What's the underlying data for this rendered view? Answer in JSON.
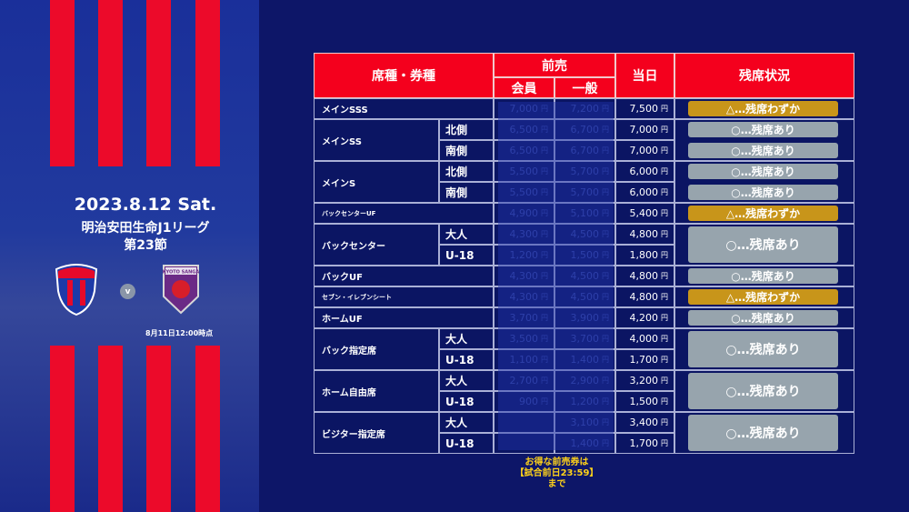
{
  "event": {
    "date": "2023.8.12 Sat.",
    "league": "明治安田生命J1リーグ",
    "round": "第23節",
    "vs": "v",
    "as_of": "8月11日12:00時点",
    "home_team": "FC東京",
    "away_team": "KYOTO SANGA"
  },
  "colors": {
    "header_red": "#f4001d",
    "navy": "#0d1668",
    "few_left": "#c8951a",
    "available": "#97a4ad",
    "note": "#ffd21a"
  },
  "table": {
    "headers": {
      "seat": "席種・券種",
      "presale": "前売",
      "member": "会員",
      "general": "一般",
      "day": "当日",
      "status": "残席状況"
    },
    "yen": "円",
    "note": [
      "お得な前売券は",
      "【試合前日23:59】",
      "まで"
    ],
    "groups": [
      {
        "name": "メインSSS",
        "rows": [
          {
            "sub": "",
            "member": "7,000",
            "general": "7,200",
            "day": "7,500"
          }
        ],
        "status": [
          {
            "label": "△…残席わずか",
            "type": "few"
          }
        ]
      },
      {
        "name": "メインSS",
        "rows": [
          {
            "sub": "北側",
            "member": "6,500",
            "general": "6,700",
            "day": "7,000"
          },
          {
            "sub": "南側",
            "member": "6,500",
            "general": "6,700",
            "day": "7,000"
          }
        ],
        "status": [
          {
            "label": "○…残席あり",
            "type": "ok"
          },
          {
            "label": "○…残席あり",
            "type": "ok"
          }
        ]
      },
      {
        "name": "メインS",
        "rows": [
          {
            "sub": "北側",
            "member": "5,500",
            "general": "5,700",
            "day": "6,000"
          },
          {
            "sub": "南側",
            "member": "5,500",
            "general": "5,700",
            "day": "6,000"
          }
        ],
        "status": [
          {
            "label": "○…残席あり",
            "type": "ok"
          },
          {
            "label": "○…残席あり",
            "type": "ok"
          }
        ]
      },
      {
        "name": "バックセンターUF",
        "rows": [
          {
            "sub": "",
            "member": "4,900",
            "general": "5,100",
            "day": "5,400"
          }
        ],
        "status": [
          {
            "label": "△…残席わずか",
            "type": "few"
          }
        ]
      },
      {
        "name": "バックセンター",
        "rows": [
          {
            "sub": "大人",
            "member": "4,300",
            "general": "4,500",
            "day": "4,800"
          },
          {
            "sub": "U-18",
            "member": "1,200",
            "general": "1,500",
            "day": "1,800"
          }
        ],
        "status": [
          {
            "label": "○…残席あり",
            "type": "ok",
            "merged": true
          }
        ]
      },
      {
        "name": "バックUF",
        "rows": [
          {
            "sub": "",
            "member": "4,300",
            "general": "4,500",
            "day": "4,800"
          }
        ],
        "status": [
          {
            "label": "○…残席あり",
            "type": "ok"
          }
        ]
      },
      {
        "name": "セブン・イレブンシート",
        "rows": [
          {
            "sub": "",
            "member": "4,300",
            "general": "4,500",
            "day": "4,800"
          }
        ],
        "status": [
          {
            "label": "△…残席わずか",
            "type": "few"
          }
        ]
      },
      {
        "name": "ホームUF",
        "rows": [
          {
            "sub": "",
            "member": "3,700",
            "general": "3,900",
            "day": "4,200"
          }
        ],
        "status": [
          {
            "label": "○…残席あり",
            "type": "ok"
          }
        ]
      },
      {
        "name": "バック指定席",
        "rows": [
          {
            "sub": "大人",
            "member": "3,500",
            "general": "3,700",
            "day": "4,000"
          },
          {
            "sub": "U-18",
            "member": "1,100",
            "general": "1,400",
            "day": "1,700"
          }
        ],
        "status": [
          {
            "label": "○…残席あり",
            "type": "ok",
            "merged": true
          }
        ]
      },
      {
        "name": "ホーム自由席",
        "rows": [
          {
            "sub": "大人",
            "member": "2,700",
            "general": "2,900",
            "day": "3,200"
          },
          {
            "sub": "U-18",
            "member": "900",
            "general": "1,200",
            "day": "1,500"
          }
        ],
        "status": [
          {
            "label": "○…残席あり",
            "type": "ok",
            "merged": true
          }
        ]
      },
      {
        "name": "ビジター指定席",
        "rows": [
          {
            "sub": "大人",
            "member": "",
            "general": "3,100",
            "day": "3,400"
          },
          {
            "sub": "U-18",
            "member": "",
            "general": "1,400",
            "day": "1,700"
          }
        ],
        "status": [
          {
            "label": "○…残席あり",
            "type": "ok",
            "merged": true
          }
        ]
      }
    ]
  }
}
